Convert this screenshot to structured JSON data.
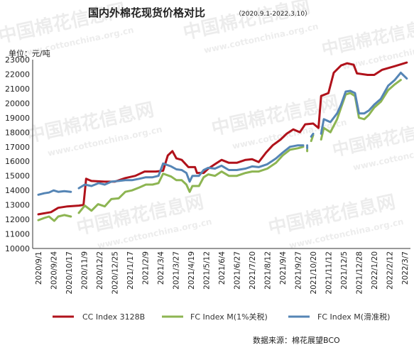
{
  "title": "国内外棉花现货价格对比",
  "subtitle": "（2020.9.1-2022.3.10）",
  "unit_label": "单位：元/吨",
  "source": "数据来源：棉花展望BCO",
  "watermark": {
    "cn": "中国棉花信息网",
    "url": "www.cottonchina.org.cn"
  },
  "colors": {
    "cc": "#b0121b",
    "fc_1pct": "#8db552",
    "fc_sliding": "#5585b5"
  },
  "chart_data": {
    "type": "line",
    "title": "国内外棉花现货价格对比",
    "ylabel": "单位：元/吨",
    "ylim": [
      10000,
      23000
    ],
    "yticks": [
      10000,
      11000,
      12000,
      13000,
      14000,
      15000,
      16000,
      17000,
      18000,
      19000,
      20000,
      21000,
      22000,
      23000
    ],
    "x_tick_labels": [
      "2020/9/1",
      "2020/9/24",
      "2020/10/17",
      "2020/11/9",
      "2020/12/2",
      "2020/12/25",
      "2021/1/17",
      "2021/2/9",
      "2021/3/4",
      "2021/3/27",
      "2021/4/19",
      "2021/5/12",
      "2021/6/4",
      "2021/6/27",
      "2021/7/20",
      "2021/8/12",
      "2021/9/4",
      "2021/9/27",
      "2021/10/20",
      "2021/11/12",
      "2021/12/5",
      "2021/12/28",
      "2022/1/20",
      "2022/2/12",
      "2022/3/7"
    ],
    "x_range": [
      "2020/9/1",
      "2022/3/10"
    ],
    "grid": false,
    "legend_position": "bottom",
    "series": [
      {
        "name": "CC Index 3128B",
        "color": "#b0121b",
        "points": [
          [
            "2020/9/1",
            12350
          ],
          [
            "2020/9/20",
            12500
          ],
          [
            "2020/10/1",
            12800
          ],
          [
            "2020/10/15",
            12900
          ],
          [
            "2020/11/1",
            12950
          ],
          [
            "2020/11/8",
            13000
          ],
          [
            "2020/11/12",
            14800
          ],
          [
            "2020/11/20",
            14650
          ],
          [
            "2020/12/10",
            14600
          ],
          [
            "2020/12/25",
            14600
          ],
          [
            "2021/1/10",
            14850
          ],
          [
            "2021/1/25",
            15000
          ],
          [
            "2021/2/8",
            15300
          ],
          [
            "2021/2/25",
            15300
          ],
          [
            "2021/3/8",
            15350
          ],
          [
            "2021/3/15",
            16400
          ],
          [
            "2021/3/22",
            16700
          ],
          [
            "2021/3/28",
            16200
          ],
          [
            "2021/4/5",
            16100
          ],
          [
            "2021/4/15",
            15600
          ],
          [
            "2021/4/25",
            15600
          ],
          [
            "2021/4/28",
            15200
          ],
          [
            "2021/5/8",
            15200
          ],
          [
            "2021/5/15",
            15500
          ],
          [
            "2021/5/25",
            15800
          ],
          [
            "2021/6/4",
            16100
          ],
          [
            "2021/6/15",
            15900
          ],
          [
            "2021/6/27",
            15900
          ],
          [
            "2021/7/10",
            16100
          ],
          [
            "2021/7/20",
            16150
          ],
          [
            "2021/7/30",
            15950
          ],
          [
            "2021/8/10",
            16600
          ],
          [
            "2021/8/20",
            17100
          ],
          [
            "2021/9/1",
            17500
          ],
          [
            "2021/9/10",
            17900
          ],
          [
            "2021/9/20",
            18200
          ],
          [
            "2021/9/30",
            18000
          ],
          [
            "2021/10/8",
            18550
          ],
          [
            "2021/10/20",
            18600
          ],
          [
            "2021/10/28",
            18300
          ],
          [
            "2021/11/1",
            20500
          ],
          [
            "2021/11/12",
            20700
          ],
          [
            "2021/11/20",
            22100
          ],
          [
            "2021/12/1",
            22600
          ],
          [
            "2021/12/10",
            22750
          ],
          [
            "2021/12/20",
            22650
          ],
          [
            "2021/12/25",
            22050
          ],
          [
            "2022/1/10",
            21950
          ],
          [
            "2022/1/20",
            21950
          ],
          [
            "2022/2/1",
            22300
          ],
          [
            "2022/2/20",
            22550
          ],
          [
            "2022/3/10",
            22800
          ]
        ]
      },
      {
        "name": "FC Index M(1%关税)",
        "color": "#8db552",
        "segments": [
          [
            [
              "2020/9/1",
              11950
            ],
            [
              "2020/9/10",
              12100
            ],
            [
              "2020/9/17",
              12200
            ],
            [
              "2020/9/25",
              11900
            ],
            [
              "2020/10/1",
              12200
            ],
            [
              "2020/10/10",
              12300
            ],
            [
              "2020/10/20",
              12200
            ]
          ],
          [
            [
              "2020/11/1",
              12450
            ],
            [
              "2020/11/10",
              12950
            ],
            [
              "2020/11/20",
              12600
            ],
            [
              "2020/11/30",
              13050
            ],
            [
              "2020/12/10",
              12900
            ],
            [
              "2020/12/20",
              13400
            ],
            [
              "2020/12/31",
              13450
            ],
            [
              "2021/1/10",
              13900
            ],
            [
              "2021/1/20",
              14000
            ],
            [
              "2021/1/31",
              14200
            ],
            [
              "2021/2/10",
              14400
            ],
            [
              "2021/2/20",
              14400
            ],
            [
              "2021/3/1",
              14500
            ],
            [
              "2021/3/8",
              15150
            ],
            [
              "2021/3/20",
              14950
            ],
            [
              "2021/3/28",
              14700
            ],
            [
              "2021/4/5",
              14700
            ],
            [
              "2021/4/12",
              14400
            ],
            [
              "2021/4/17",
              13900
            ],
            [
              "2021/4/21",
              14300
            ],
            [
              "2021/5/1",
              14300
            ],
            [
              "2021/5/8",
              14900
            ],
            [
              "2021/5/15",
              15100
            ],
            [
              "2021/5/25",
              15000
            ],
            [
              "2021/6/4",
              15300
            ],
            [
              "2021/6/15",
              15000
            ],
            [
              "2021/6/27",
              15000
            ],
            [
              "2021/7/10",
              15200
            ],
            [
              "2021/7/20",
              15300
            ],
            [
              "2021/7/30",
              15300
            ],
            [
              "2021/8/12",
              15500
            ],
            [
              "2021/8/25",
              15900
            ],
            [
              "2021/9/4",
              16400
            ],
            [
              "2021/9/15",
              16800
            ],
            [
              "2021/9/27",
              16900
            ],
            [
              "2021/10/5",
              17000
            ]
          ],
          [
            [
              "2021/10/11",
              16700
            ],
            [
              "2021/10/11",
              16800
            ]
          ],
          [
            [
              "2021/10/17",
              17400
            ],
            [
              "2021/10/20",
              17800
            ]
          ],
          [
            [
              "2021/11/1",
              17500
            ],
            [
              "2021/11/5",
              18300
            ],
            [
              "2021/11/15",
              18000
            ],
            [
              "2021/11/25",
              18900
            ],
            [
              "2021/12/1",
              19700
            ],
            [
              "2021/12/8",
              20600
            ],
            [
              "2021/12/15",
              20700
            ],
            [
              "2021/12/22",
              20500
            ],
            [
              "2021/12/28",
              19000
            ],
            [
              "2022/1/5",
              18900
            ],
            [
              "2022/1/12",
              19200
            ],
            [
              "2022/1/20",
              19700
            ],
            [
              "2022/1/30",
              20100
            ],
            [
              "2022/2/10",
              20900
            ],
            [
              "2022/2/20",
              21300
            ],
            [
              "2022/3/1",
              21600
            ]
          ]
        ]
      },
      {
        "name": "FC Index M(滑准税)",
        "color": "#5585b5",
        "segments": [
          [
            [
              "2020/9/1",
              13700
            ],
            [
              "2020/9/10",
              13800
            ],
            [
              "2020/9/17",
              13850
            ],
            [
              "2020/9/24",
              14000
            ],
            [
              "2020/10/1",
              13900
            ],
            [
              "2020/10/10",
              13950
            ],
            [
              "2020/10/20",
              13900
            ]
          ],
          [
            [
              "2020/11/1",
              14150
            ],
            [
              "2020/11/10",
              14400
            ],
            [
              "2020/11/20",
              14300
            ],
            [
              "2020/12/1",
              14500
            ],
            [
              "2020/12/10",
              14400
            ],
            [
              "2020/12/20",
              14600
            ],
            [
              "2020/12/31",
              14650
            ],
            [
              "2021/1/10",
              14700
            ],
            [
              "2021/1/20",
              14700
            ],
            [
              "2021/1/31",
              14800
            ],
            [
              "2021/2/10",
              14900
            ],
            [
              "2021/2/20",
              14900
            ],
            [
              "2021/3/1",
              15000
            ],
            [
              "2021/3/8",
              15850
            ],
            [
              "2021/3/20",
              15650
            ],
            [
              "2021/3/28",
              15450
            ],
            [
              "2021/4/5",
              15400
            ],
            [
              "2021/4/12",
              15200
            ],
            [
              "2021/4/17",
              14600
            ],
            [
              "2021/4/21",
              15000
            ],
            [
              "2021/5/1",
              15000
            ],
            [
              "2021/5/8",
              15400
            ],
            [
              "2021/5/15",
              15550
            ],
            [
              "2021/5/25",
              15500
            ],
            [
              "2021/6/4",
              15700
            ],
            [
              "2021/6/15",
              15400
            ],
            [
              "2021/6/27",
              15400
            ],
            [
              "2021/7/10",
              15500
            ],
            [
              "2021/7/20",
              15650
            ],
            [
              "2021/7/30",
              15600
            ],
            [
              "2021/8/12",
              15800
            ],
            [
              "2021/8/25",
              16200
            ],
            [
              "2021/9/4",
              16600
            ],
            [
              "2021/9/15",
              17000
            ],
            [
              "2021/9/27",
              17100
            ],
            [
              "2021/10/5",
              17100
            ]
          ],
          [
            [
              "2021/10/11",
              17100
            ],
            [
              "2021/10/11",
              16900
            ]
          ],
          [
            [
              "2021/10/17",
              17700
            ],
            [
              "2021/10/20",
              17900
            ]
          ],
          [
            [
              "2021/11/1",
              17900
            ],
            [
              "2021/11/5",
              18900
            ],
            [
              "2021/11/15",
              18700
            ],
            [
              "2021/11/25",
              19300
            ],
            [
              "2021/12/1",
              19900
            ],
            [
              "2021/12/8",
              20800
            ],
            [
              "2021/12/15",
              20850
            ],
            [
              "2021/12/22",
              20700
            ],
            [
              "2021/12/28",
              19300
            ],
            [
              "2022/1/5",
              19300
            ],
            [
              "2022/1/12",
              19500
            ],
            [
              "2022/1/20",
              19900
            ],
            [
              "2022/1/30",
              20300
            ],
            [
              "2022/2/10",
              21200
            ],
            [
              "2022/2/20",
              21600
            ],
            [
              "2022/3/1",
              22100
            ],
            [
              "2022/3/10",
              21700
            ]
          ]
        ]
      }
    ]
  }
}
